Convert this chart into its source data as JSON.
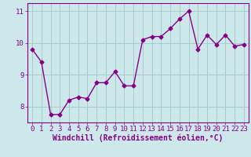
{
  "x": [
    0,
    1,
    2,
    3,
    4,
    5,
    6,
    7,
    8,
    9,
    10,
    11,
    12,
    13,
    14,
    15,
    16,
    17,
    18,
    19,
    20,
    21,
    22,
    23
  ],
  "y": [
    9.8,
    9.4,
    7.75,
    7.75,
    8.2,
    8.3,
    8.25,
    8.75,
    8.75,
    9.1,
    8.65,
    8.65,
    10.1,
    10.2,
    10.2,
    10.45,
    10.75,
    11.0,
    9.8,
    10.25,
    9.95,
    10.25,
    9.9,
    9.95
  ],
  "line_color": "#880088",
  "marker": "D",
  "marker_size": 2.5,
  "bg_color": "#cce8ea",
  "grid_color": "#aacccc",
  "xlabel": "Windchill (Refroidissement éolien,°C)",
  "xlim": [
    -0.5,
    23.5
  ],
  "ylim": [
    7.5,
    11.25
  ],
  "yticks": [
    8,
    9,
    10,
    11
  ],
  "xticks": [
    0,
    1,
    2,
    3,
    4,
    5,
    6,
    7,
    8,
    9,
    10,
    11,
    12,
    13,
    14,
    15,
    16,
    17,
    18,
    19,
    20,
    21,
    22,
    23
  ],
  "tick_label_size": 6.5,
  "xlabel_size": 7,
  "line_width": 1.0
}
